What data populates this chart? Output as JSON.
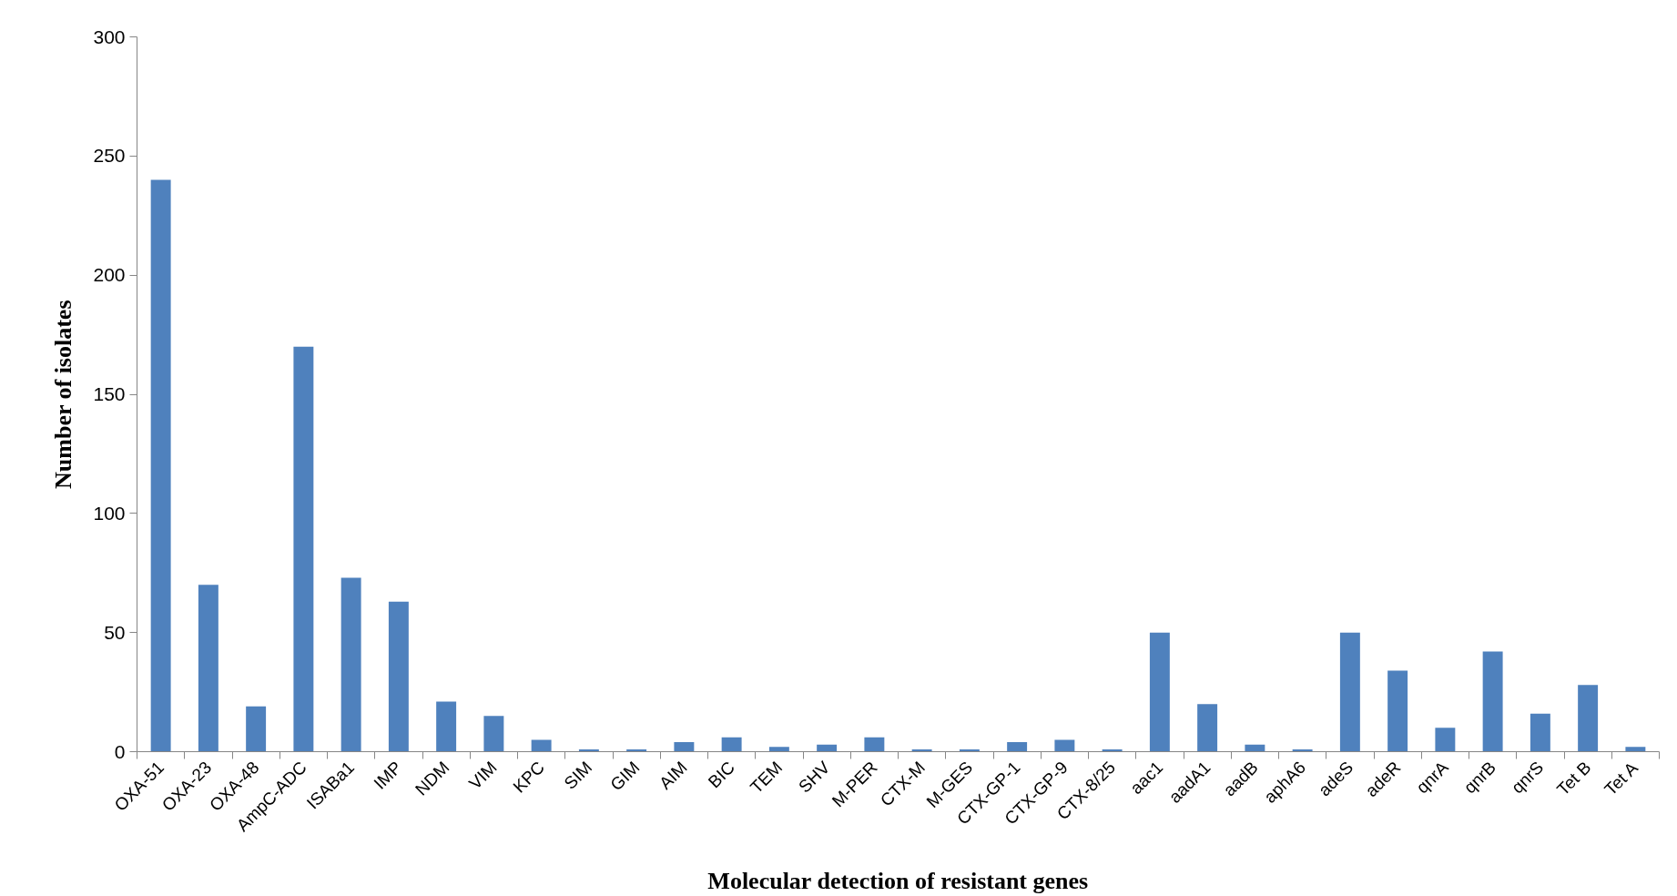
{
  "chart_data": {
    "type": "bar",
    "xlabel": "Molecular detection of resistant genes",
    "ylabel": "Number of isolates",
    "categories": [
      "OXA-51",
      "OXA-23",
      "OXA-48",
      "AmpC-ADC",
      "ISABa1",
      "IMP",
      "NDM",
      "VIM",
      "KPC",
      "SIM",
      "GIM",
      "AIM",
      "BIC",
      "TEM",
      "SHV",
      "M-PER",
      "CTX-M",
      "M-GES",
      "CTX-GP-1",
      "CTX-GP-9",
      "CTX-8/25",
      "aac1",
      "aadA1",
      "aadB",
      "aphA6",
      "adeS",
      "adeR",
      "qnrA",
      "qnrB",
      "qnrS",
      "Tet B",
      "Tet A"
    ],
    "values": [
      240,
      70,
      19,
      170,
      73,
      63,
      21,
      15,
      5,
      1,
      1,
      4,
      6,
      2,
      3,
      6,
      1,
      1,
      4,
      5,
      1,
      50,
      20,
      3,
      1,
      50,
      34,
      10,
      42,
      16,
      28,
      2
    ],
    "color": "#4f81bd",
    "ylim": [
      0,
      300
    ],
    "yticks": [
      0,
      50,
      100,
      150,
      200,
      250,
      300
    ],
    "grid": false
  }
}
